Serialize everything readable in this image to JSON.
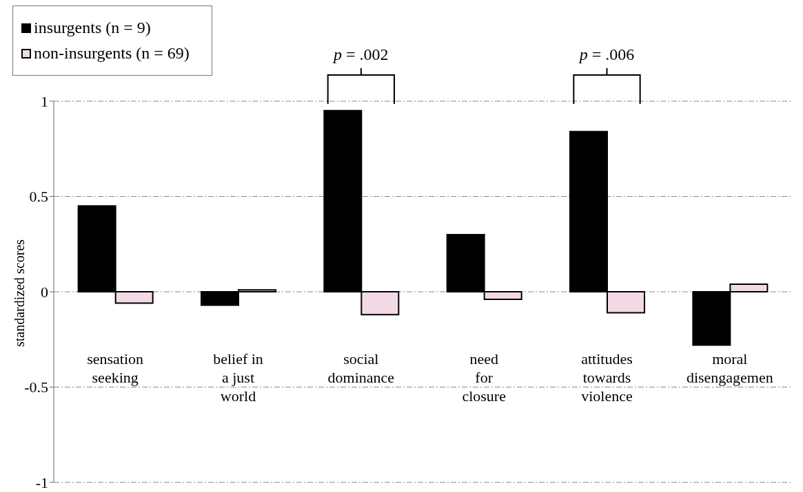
{
  "chart_data": {
    "type": "bar",
    "ylabel": "standardized scores",
    "categories": [
      "sensation\nseeking",
      "belief in\na just\nworld",
      "social\ndominance",
      "need\nfor\nclosure",
      "attitudes\ntowards\nviolence",
      "moral\ndisengagemen"
    ],
    "series": [
      {
        "name": "insurgents (n = 9)",
        "color": "#000000",
        "values": [
          0.45,
          -0.07,
          0.95,
          0.3,
          0.84,
          -0.28
        ]
      },
      {
        "name": "non-insurgents (n = 69)",
        "color": "#f2d9e6",
        "values": [
          -0.06,
          0.01,
          -0.12,
          -0.04,
          -0.11,
          0.04
        ]
      }
    ],
    "ylim": [
      -1,
      1
    ],
    "yticks": [
      -1,
      -0.5,
      0,
      0.5,
      1
    ],
    "grid": "y",
    "legend": "top left",
    "annotations": [
      "p = .002",
      "p = .006"
    ]
  }
}
